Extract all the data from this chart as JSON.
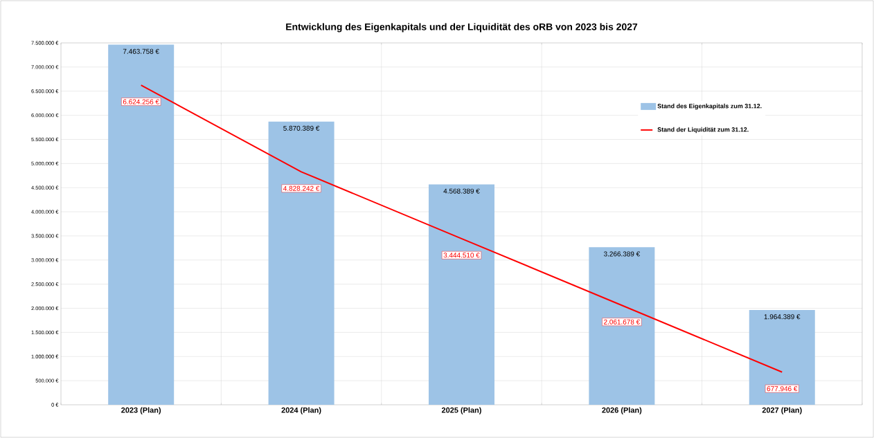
{
  "chart_data": {
    "type": "bar",
    "title": "Entwicklung des Eigenkapitals und der Liquidität des oRB von 2023 bis 2027",
    "categories": [
      "2023 (Plan)",
      "2024 (Plan)",
      "2025 (Plan)",
      "2026 (Plan)",
      "2027 (Plan)"
    ],
    "series": [
      {
        "name": "Stand des Eigenkapitals zum 31.12.",
        "color": "#9dc3e6",
        "values": [
          7463758,
          5870389,
          4568389,
          3266389,
          1964389
        ],
        "value_labels": [
          "7.463.758 €",
          "5.870.389 €",
          "4.568.389 €",
          "3.266.389 €",
          "1.964.389 €"
        ]
      },
      {
        "name": "Stand der Liquidität zum 31.12.",
        "type": "line",
        "color": "#ff0000",
        "values": [
          6624256,
          4828242,
          3444510,
          2061678,
          677946
        ],
        "value_labels": [
          "6.624.256 €",
          "4.828.242 €",
          "3.444.510 €",
          "2.061.678 €",
          "677.946 €"
        ]
      }
    ],
    "ylim": [
      0,
      7500000
    ],
    "yticks": [
      {
        "value": 0,
        "label": "0 €"
      },
      {
        "value": 500000,
        "label": "500.000 €"
      },
      {
        "value": 1000000,
        "label": "1.000.000 €"
      },
      {
        "value": 1500000,
        "label": "1.500.000 €"
      },
      {
        "value": 2000000,
        "label": "2.000.000 €"
      },
      {
        "value": 2500000,
        "label": "2.500.000 €"
      },
      {
        "value": 3000000,
        "label": "3.000.000 €"
      },
      {
        "value": 3500000,
        "label": "3.500.000 €"
      },
      {
        "value": 4000000,
        "label": "4.000.000 €"
      },
      {
        "value": 4500000,
        "label": "4.500.000 €"
      },
      {
        "value": 5000000,
        "label": "5.000.000 €"
      },
      {
        "value": 5500000,
        "label": "5.500.000 €"
      },
      {
        "value": 6000000,
        "label": "6.000.000 €"
      },
      {
        "value": 6500000,
        "label": "6.500.000 €"
      },
      {
        "value": 7000000,
        "label": "7.000.000 €"
      },
      {
        "value": 7500000,
        "label": "7.500.000 €"
      }
    ],
    "grid": true,
    "legend": "right"
  }
}
